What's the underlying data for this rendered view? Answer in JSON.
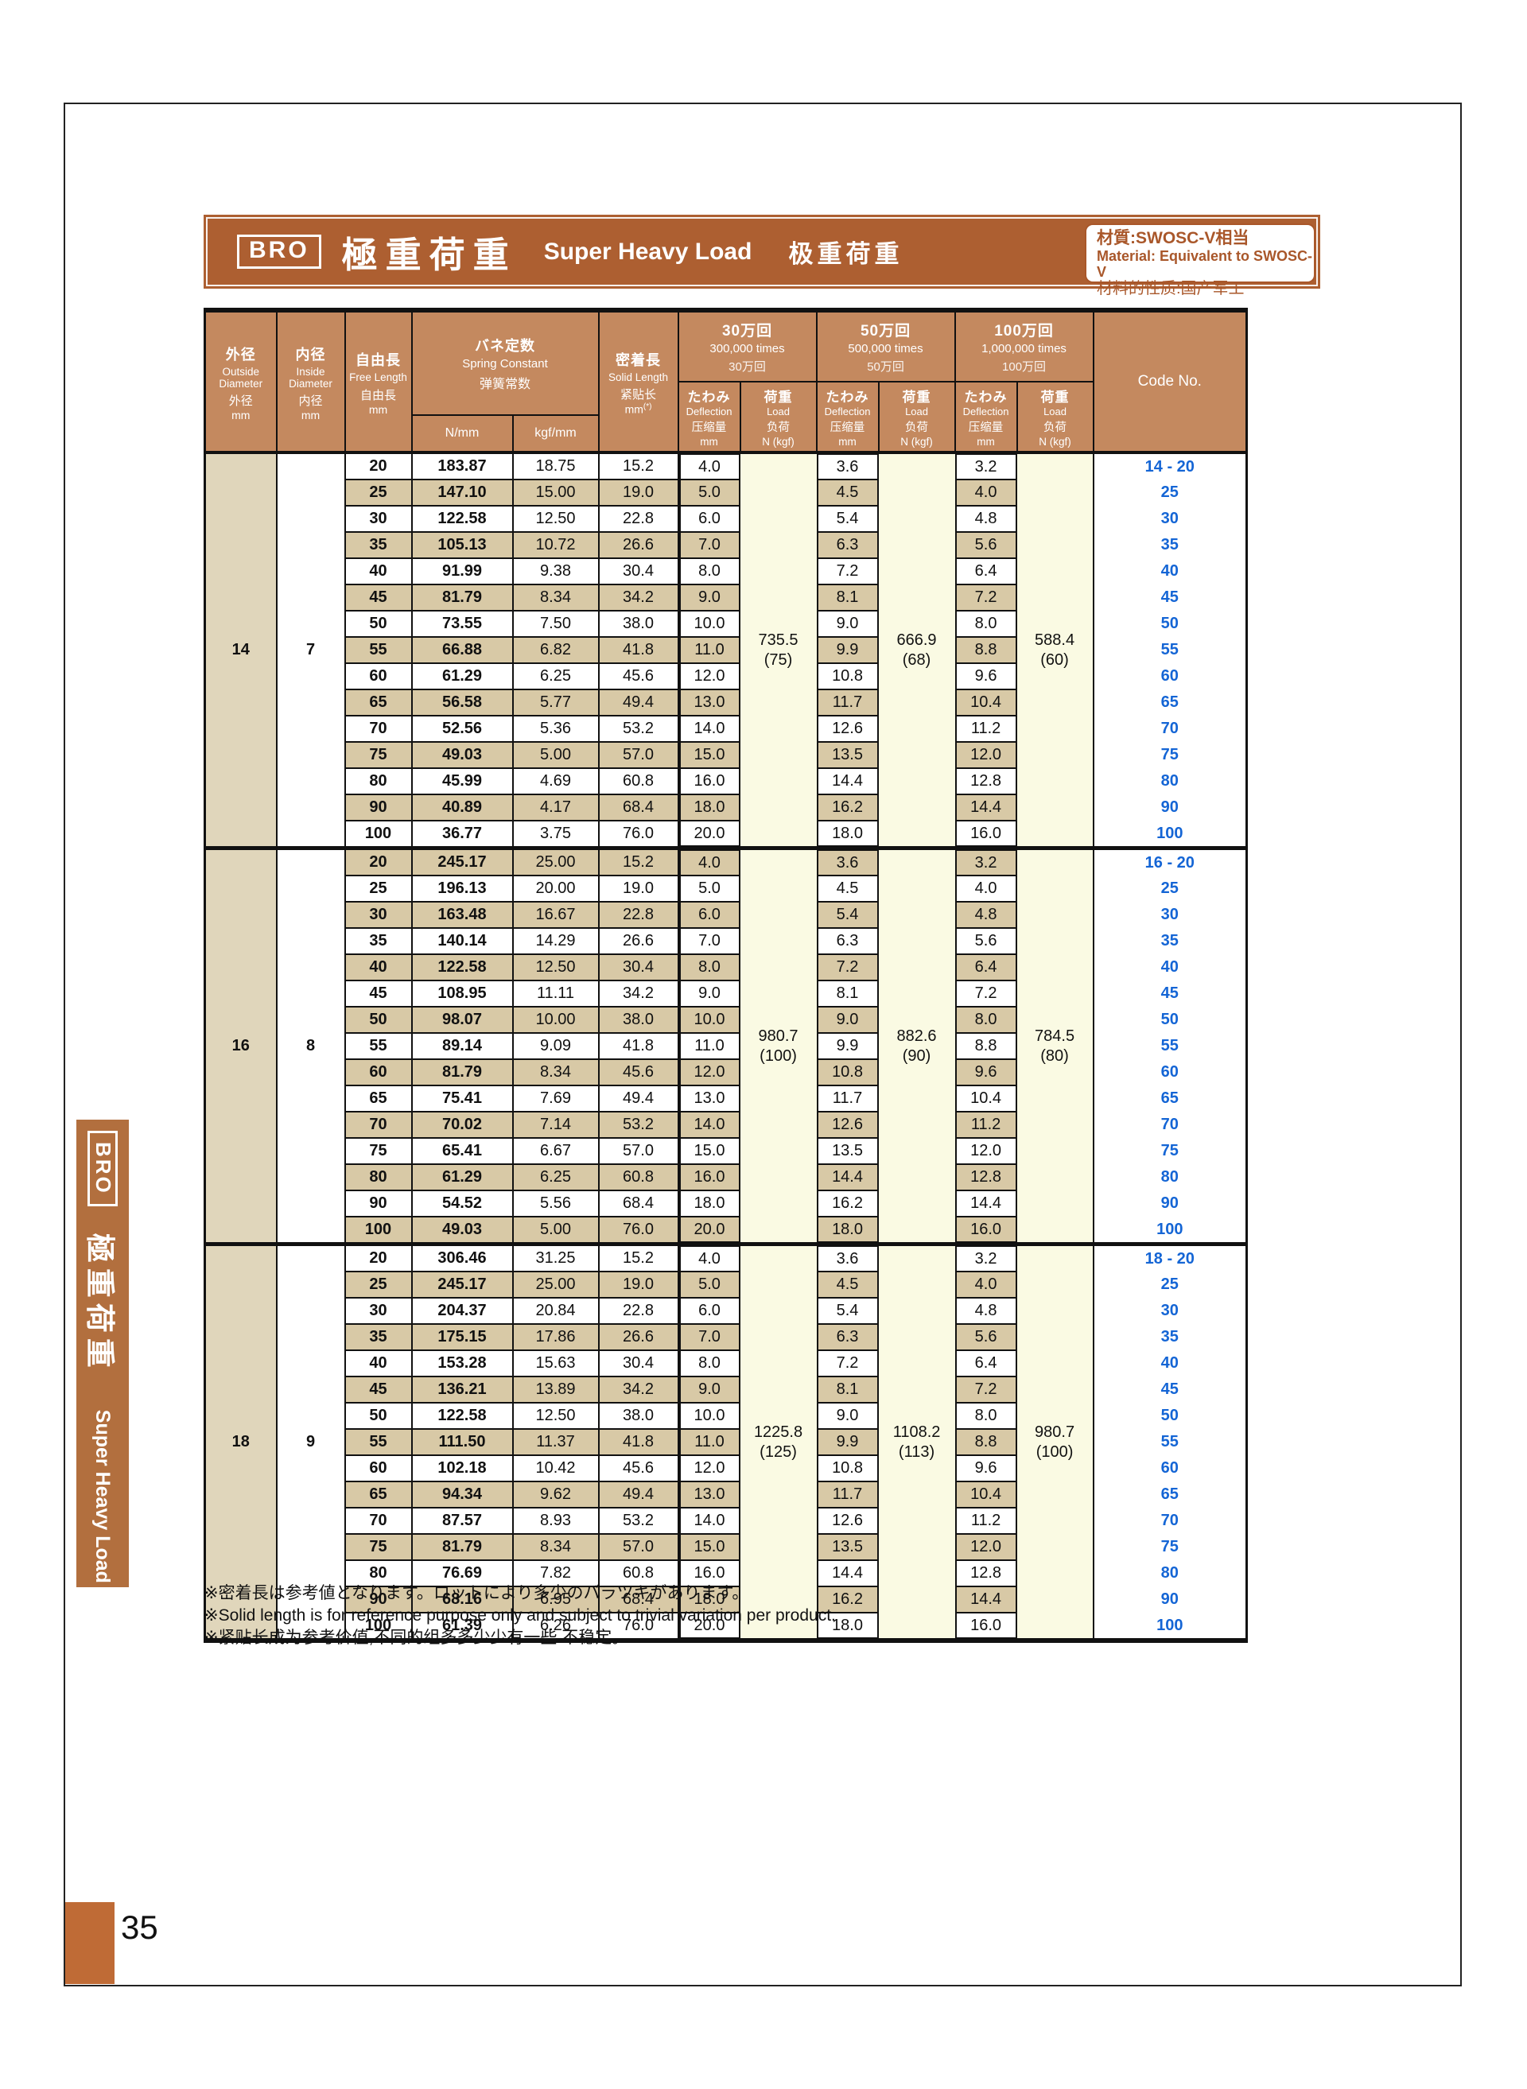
{
  "page": {
    "number": "35"
  },
  "title_bar": {
    "brand": "BRO",
    "title_jp": "極重荷重",
    "title_en": "Super Heavy Load",
    "title_cn": "极重荷重",
    "material": {
      "line1": "材質:SWOSC-V相当",
      "line2": "Material: Equivalent to SWOSC-V",
      "line3": "材料的性质:国产军工"
    }
  },
  "side_tab": {
    "brand": "BRO",
    "title_jp": "極重荷重",
    "title_en": "Super Heavy Load",
    "title_cn": "极重荷重"
  },
  "table": {
    "headers": {
      "od": {
        "jp": "外径",
        "en": "Outside Diameter",
        "cn": "外径",
        "unit": "mm"
      },
      "id": {
        "jp": "内径",
        "en": "Inside Diameter",
        "cn": "内径",
        "unit": "mm"
      },
      "free": {
        "jp": "自由長",
        "en": "Free Length",
        "cn": "自由長",
        "unit": "mm"
      },
      "spring": {
        "jp": "バネ定数",
        "en": "Spring Constant",
        "cn": "弹簧常数",
        "unit_n": "N/mm",
        "unit_kgf": "kgf/mm"
      },
      "solid": {
        "jp": "密着長",
        "en": "Solid Length",
        "cn": "紧贴长",
        "unit": "mm",
        "unit_sup": "(*)"
      },
      "cycles": [
        {
          "jp": "30万回",
          "en": "300,000 times",
          "cn": "30万回"
        },
        {
          "jp": "50万回",
          "en": "500,000 times",
          "cn": "50万回"
        },
        {
          "jp": "100万回",
          "en": "1,000,000 times",
          "cn": "100万回"
        }
      ],
      "deflection": {
        "jp": "たわみ",
        "en": "Deflection",
        "cn": "压缩量",
        "unit": "mm"
      },
      "load": {
        "jp": "荷重",
        "en": "Load",
        "cn": "负荷",
        "unit": "N (kgf)"
      },
      "code": "Code No."
    },
    "blocks": [
      {
        "od": "14",
        "id": "7",
        "loads": [
          {
            "n": "735.5",
            "kgf": "(75)"
          },
          {
            "n": "666.9",
            "kgf": "(68)"
          },
          {
            "n": "588.4",
            "kgf": "(60)"
          }
        ],
        "rows": [
          [
            "20",
            "183.87",
            "18.75",
            "15.2",
            "4.0",
            "3.6",
            "3.2",
            "14 - 20"
          ],
          [
            "25",
            "147.10",
            "15.00",
            "19.0",
            "5.0",
            "4.5",
            "4.0",
            "25"
          ],
          [
            "30",
            "122.58",
            "12.50",
            "22.8",
            "6.0",
            "5.4",
            "4.8",
            "30"
          ],
          [
            "35",
            "105.13",
            "10.72",
            "26.6",
            "7.0",
            "6.3",
            "5.6",
            "35"
          ],
          [
            "40",
            "91.99",
            "9.38",
            "30.4",
            "8.0",
            "7.2",
            "6.4",
            "40"
          ],
          [
            "45",
            "81.79",
            "8.34",
            "34.2",
            "9.0",
            "8.1",
            "7.2",
            "45"
          ],
          [
            "50",
            "73.55",
            "7.50",
            "38.0",
            "10.0",
            "9.0",
            "8.0",
            "50"
          ],
          [
            "55",
            "66.88",
            "6.82",
            "41.8",
            "11.0",
            "9.9",
            "8.8",
            "55"
          ],
          [
            "60",
            "61.29",
            "6.25",
            "45.6",
            "12.0",
            "10.8",
            "9.6",
            "60"
          ],
          [
            "65",
            "56.58",
            "5.77",
            "49.4",
            "13.0",
            "11.7",
            "10.4",
            "65"
          ],
          [
            "70",
            "52.56",
            "5.36",
            "53.2",
            "14.0",
            "12.6",
            "11.2",
            "70"
          ],
          [
            "75",
            "49.03",
            "5.00",
            "57.0",
            "15.0",
            "13.5",
            "12.0",
            "75"
          ],
          [
            "80",
            "45.99",
            "4.69",
            "60.8",
            "16.0",
            "14.4",
            "12.8",
            "80"
          ],
          [
            "90",
            "40.89",
            "4.17",
            "68.4",
            "18.0",
            "16.2",
            "14.4",
            "90"
          ],
          [
            "100",
            "36.77",
            "3.75",
            "76.0",
            "20.0",
            "18.0",
            "16.0",
            "100"
          ]
        ]
      },
      {
        "od": "16",
        "id": "8",
        "loads": [
          {
            "n": "980.7",
            "kgf": "(100)"
          },
          {
            "n": "882.6",
            "kgf": "(90)"
          },
          {
            "n": "784.5",
            "kgf": "(80)"
          }
        ],
        "rows": [
          [
            "20",
            "245.17",
            "25.00",
            "15.2",
            "4.0",
            "3.6",
            "3.2",
            "16 - 20"
          ],
          [
            "25",
            "196.13",
            "20.00",
            "19.0",
            "5.0",
            "4.5",
            "4.0",
            "25"
          ],
          [
            "30",
            "163.48",
            "16.67",
            "22.8",
            "6.0",
            "5.4",
            "4.8",
            "30"
          ],
          [
            "35",
            "140.14",
            "14.29",
            "26.6",
            "7.0",
            "6.3",
            "5.6",
            "35"
          ],
          [
            "40",
            "122.58",
            "12.50",
            "30.4",
            "8.0",
            "7.2",
            "6.4",
            "40"
          ],
          [
            "45",
            "108.95",
            "11.11",
            "34.2",
            "9.0",
            "8.1",
            "7.2",
            "45"
          ],
          [
            "50",
            "98.07",
            "10.00",
            "38.0",
            "10.0",
            "9.0",
            "8.0",
            "50"
          ],
          [
            "55",
            "89.14",
            "9.09",
            "41.8",
            "11.0",
            "9.9",
            "8.8",
            "55"
          ],
          [
            "60",
            "81.79",
            "8.34",
            "45.6",
            "12.0",
            "10.8",
            "9.6",
            "60"
          ],
          [
            "65",
            "75.41",
            "7.69",
            "49.4",
            "13.0",
            "11.7",
            "10.4",
            "65"
          ],
          [
            "70",
            "70.02",
            "7.14",
            "53.2",
            "14.0",
            "12.6",
            "11.2",
            "70"
          ],
          [
            "75",
            "65.41",
            "6.67",
            "57.0",
            "15.0",
            "13.5",
            "12.0",
            "75"
          ],
          [
            "80",
            "61.29",
            "6.25",
            "60.8",
            "16.0",
            "14.4",
            "12.8",
            "80"
          ],
          [
            "90",
            "54.52",
            "5.56",
            "68.4",
            "18.0",
            "16.2",
            "14.4",
            "90"
          ],
          [
            "100",
            "49.03",
            "5.00",
            "76.0",
            "20.0",
            "18.0",
            "16.0",
            "100"
          ]
        ]
      },
      {
        "od": "18",
        "id": "9",
        "loads": [
          {
            "n": "1225.8",
            "kgf": "(125)"
          },
          {
            "n": "1108.2",
            "kgf": "(113)"
          },
          {
            "n": "980.7",
            "kgf": "(100)"
          }
        ],
        "rows": [
          [
            "20",
            "306.46",
            "31.25",
            "15.2",
            "4.0",
            "3.6",
            "3.2",
            "18 - 20"
          ],
          [
            "25",
            "245.17",
            "25.00",
            "19.0",
            "5.0",
            "4.5",
            "4.0",
            "25"
          ],
          [
            "30",
            "204.37",
            "20.84",
            "22.8",
            "6.0",
            "5.4",
            "4.8",
            "30"
          ],
          [
            "35",
            "175.15",
            "17.86",
            "26.6",
            "7.0",
            "6.3",
            "5.6",
            "35"
          ],
          [
            "40",
            "153.28",
            "15.63",
            "30.4",
            "8.0",
            "7.2",
            "6.4",
            "40"
          ],
          [
            "45",
            "136.21",
            "13.89",
            "34.2",
            "9.0",
            "8.1",
            "7.2",
            "45"
          ],
          [
            "50",
            "122.58",
            "12.50",
            "38.0",
            "10.0",
            "9.0",
            "8.0",
            "50"
          ],
          [
            "55",
            "111.50",
            "11.37",
            "41.8",
            "11.0",
            "9.9",
            "8.8",
            "55"
          ],
          [
            "60",
            "102.18",
            "10.42",
            "45.6",
            "12.0",
            "10.8",
            "9.6",
            "60"
          ],
          [
            "65",
            "94.34",
            "9.62",
            "49.4",
            "13.0",
            "11.7",
            "10.4",
            "65"
          ],
          [
            "70",
            "87.57",
            "8.93",
            "53.2",
            "14.0",
            "12.6",
            "11.2",
            "70"
          ],
          [
            "75",
            "81.79",
            "8.34",
            "57.0",
            "15.0",
            "13.5",
            "12.0",
            "75"
          ],
          [
            "80",
            "76.69",
            "7.82",
            "60.8",
            "16.0",
            "14.4",
            "12.8",
            "80"
          ],
          [
            "90",
            "68.16",
            "6.95",
            "68.4",
            "18.0",
            "16.2",
            "14.4",
            "90"
          ],
          [
            "100",
            "61.39",
            "6.26",
            "76.0",
            "20.0",
            "18.0",
            "16.0",
            "100"
          ]
        ]
      }
    ]
  },
  "footnotes": [
    "※密着長は参考値となります。ロットにより多少のバラツキがあります。",
    "※Solid length is for reference purpose only and subject to trivial variation per product.",
    "※紧贴长成为参考价值,不同的组多多少少有一些 不稳定。"
  ]
}
